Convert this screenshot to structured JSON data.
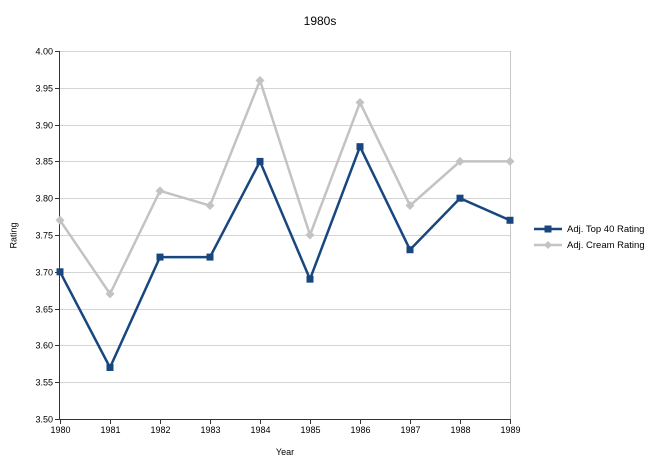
{
  "chart_data": {
    "type": "line",
    "title": "1980s",
    "xlabel": "Year",
    "ylabel": "Rating",
    "categories": [
      "1980",
      "1981",
      "1982",
      "1983",
      "1984",
      "1985",
      "1986",
      "1987",
      "1988",
      "1989"
    ],
    "series": [
      {
        "name": "Adj. Top 40 Rating",
        "color": "#17477e",
        "marker": "square",
        "values": [
          3.7,
          3.57,
          3.72,
          3.72,
          3.85,
          3.69,
          3.87,
          3.73,
          3.8,
          3.77
        ]
      },
      {
        "name": "Adj. Cream Rating",
        "color": "#c3c3c3",
        "marker": "diamond",
        "values": [
          3.77,
          3.67,
          3.81,
          3.79,
          3.96,
          3.75,
          3.93,
          3.79,
          3.85,
          3.85
        ]
      }
    ],
    "ylim": [
      3.5,
      4.0
    ],
    "ytick_step": 0.05,
    "ytick_labels": [
      "3.50",
      "3.55",
      "3.60",
      "3.65",
      "3.70",
      "3.75",
      "3.80",
      "3.85",
      "3.90",
      "3.95",
      "4.00"
    ],
    "grid": true,
    "legend_position": "right",
    "colors": {
      "gridline": "#d5d5d5",
      "plot_border": "#c6c6c6",
      "axis": "#333333",
      "text": "#000000",
      "background": "#ffffff"
    }
  }
}
